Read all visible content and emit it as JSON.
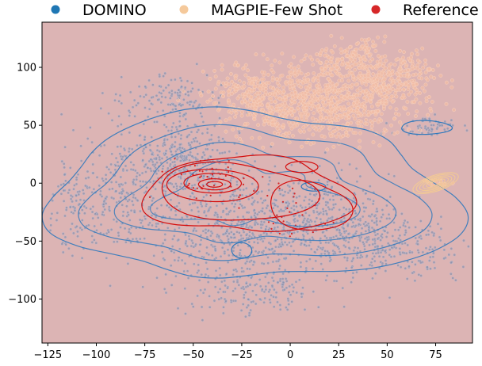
{
  "chart_data": {
    "type": "scatter",
    "title": "",
    "xlabel": "",
    "ylabel": "",
    "xlim": [
      -128,
      94
    ],
    "ylim": [
      -138,
      139
    ],
    "x_ticks": [
      -125,
      -100,
      -75,
      -50,
      -25,
      0,
      25,
      50,
      75
    ],
    "y_ticks": [
      -100,
      -50,
      0,
      50,
      100
    ],
    "x_tick_labels": [
      "−125",
      "−100",
      "−75",
      "−50",
      "−25",
      "0",
      "25",
      "50",
      "75"
    ],
    "y_tick_labels": [
      "−100",
      "−50",
      "0",
      "50",
      "100"
    ],
    "background_color": "#dcb4b4",
    "legend": {
      "placement": "top-outside",
      "ncol": 3
    },
    "grid": false,
    "series": [
      {
        "name": "DOMINO",
        "marker_color": "#1f77b4",
        "point_color": "#8a8ea8",
        "contour_color": "#2e78bc",
        "clusters": [
          {
            "center": [
              -55,
              20
            ],
            "spread": [
              14,
              15
            ],
            "count": 330
          },
          {
            "center": [
              -30,
              -40
            ],
            "spread": [
              22,
              22
            ],
            "count": 480
          },
          {
            "center": [
              10,
              -30
            ],
            "spread": [
              22,
              20
            ],
            "count": 380
          },
          {
            "center": [
              -85,
              -10
            ],
            "spread": [
              16,
              26
            ],
            "count": 280
          },
          {
            "center": [
              -60,
              70
            ],
            "spread": [
              14,
              12
            ],
            "count": 160
          },
          {
            "center": [
              30,
              -45
            ],
            "spread": [
              18,
              18
            ],
            "count": 240
          },
          {
            "center": [
              -20,
              -95
            ],
            "spread": [
              18,
              10
            ],
            "count": 150
          },
          {
            "center": [
              60,
              -60
            ],
            "spread": [
              18,
              12
            ],
            "count": 130
          },
          {
            "center": [
              70,
              48
            ],
            "spread": [
              9,
              4
            ],
            "count": 60
          },
          {
            "center": [
              -110,
              -20
            ],
            "spread": [
              8,
              18
            ],
            "count": 80
          }
        ],
        "contour_levels": 4
      },
      {
        "name": "MAGPIE-Few Shot",
        "marker_color": "#f5c99b",
        "point_color": "#f2bca6",
        "contour_color": "#f2c994",
        "clusters": [
          {
            "center": [
              15,
              70
            ],
            "spread": [
              22,
              16
            ],
            "count": 900
          },
          {
            "center": [
              55,
              90
            ],
            "spread": [
              12,
              10
            ],
            "count": 220
          },
          {
            "center": [
              -20,
              80
            ],
            "spread": [
              10,
              12
            ],
            "count": 160
          },
          {
            "center": [
              30,
              105
            ],
            "spread": [
              12,
              8
            ],
            "count": 160
          },
          {
            "center": [
              40,
              120
            ],
            "spread": [
              4,
              4
            ],
            "count": 25
          },
          {
            "center": [
              75,
              0
            ],
            "spread": [
              4,
              2
            ],
            "count": 18
          }
        ],
        "contour_center": [
          75,
          0
        ],
        "contour_levels": 6
      },
      {
        "name": "Reference",
        "marker_color": "#d62728",
        "point_color": "#d62728",
        "contour_color": "#d40c0c",
        "clusters": [
          {
            "center": [
              -40,
              0
            ],
            "spread": [
              12,
              10
            ],
            "count": 40
          },
          {
            "center": [
              0,
              -20
            ],
            "spread": [
              14,
              14
            ],
            "count": 30
          }
        ],
        "contour_levels": 5
      }
    ]
  }
}
